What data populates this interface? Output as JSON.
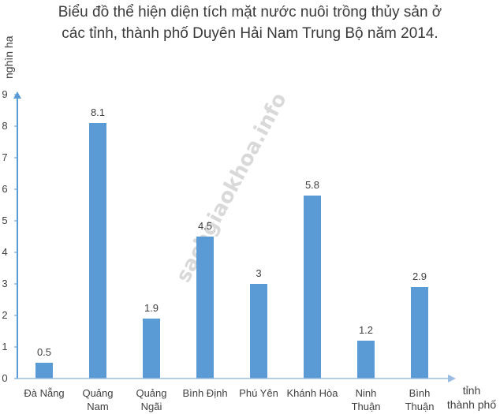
{
  "chart_data": {
    "type": "bar",
    "title_line1": "Biểu đồ thể hiện diện tích mặt nước nuôi trồng thủy sản ở",
    "title_line2": "các tỉnh, thành phố Duyên Hải Nam Trung Bộ năm 2014.",
    "ylabel": "nghìn ha",
    "xlabel_line1": "tỉnh",
    "xlabel_line2": "thành phố",
    "ylim": [
      0,
      9
    ],
    "yticks": [
      0,
      1,
      2,
      3,
      4,
      5,
      6,
      7,
      8,
      9
    ],
    "categories": [
      [
        "Đà Nẵng"
      ],
      [
        "Quảng",
        "Nam"
      ],
      [
        "Quảng",
        "Ngãi"
      ],
      [
        "Bình Định"
      ],
      [
        "Phú Yên"
      ],
      [
        "Khánh Hòa"
      ],
      [
        "Ninh",
        "Thuận"
      ],
      [
        "Bình",
        "Thuận"
      ]
    ],
    "values": [
      0.5,
      8.1,
      1.9,
      4.5,
      3,
      5.8,
      1.2,
      2.9
    ],
    "value_labels": [
      "0.5",
      "8.1",
      "1.9",
      "4.5",
      "3",
      "5.8",
      "1.2",
      "2.9"
    ],
    "bar_color": "#5b9bd5",
    "axis_color": "#5b9bd5",
    "grid": false,
    "watermark": "sachgiaokhoa.info"
  }
}
